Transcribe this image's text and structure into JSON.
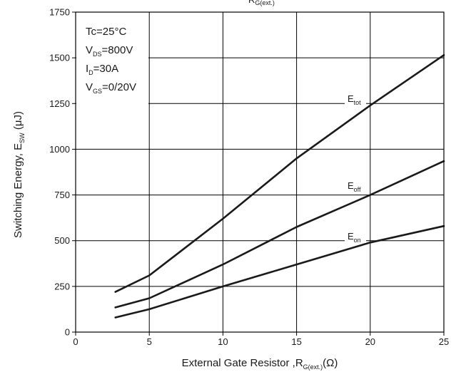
{
  "chart_data": {
    "type": "line",
    "x_axis": {
      "label_main": "External Gate Resistor ,R",
      "label_sub": "G(ext.)",
      "label_unit": "(Ω)",
      "ticks": [
        "0",
        "5",
        "10",
        "15",
        "20",
        "25"
      ],
      "lim": [
        0,
        25
      ]
    },
    "y_axis": {
      "label_main": "Switching Energy, E",
      "label_sub": "SW",
      "label_unit": " (μJ)",
      "ticks": [
        "0",
        "250",
        "500",
        "750",
        "1000",
        "1250",
        "1500",
        "1750"
      ],
      "lim": [
        0,
        1750
      ]
    },
    "top_label": {
      "main": "R",
      "sub": "G(ext.)"
    },
    "conditions": [
      {
        "main": "Tc=25°C",
        "sub": "",
        "tail": ""
      },
      {
        "main": "V",
        "sub": "DS",
        "tail": "=800V"
      },
      {
        "main": "I",
        "sub": "D",
        "tail": "=30A"
      },
      {
        "main": "V",
        "sub": "GS",
        "tail": "=0/20V"
      }
    ],
    "grid": true,
    "series": [
      {
        "name_main": "E",
        "name_sub": "tot",
        "x": [
          2.7,
          5,
          10,
          15,
          20,
          25
        ],
        "y": [
          220,
          310,
          620,
          950,
          1240,
          1515
        ]
      },
      {
        "name_main": "E",
        "name_sub": "off",
        "x": [
          2.7,
          5,
          10,
          15,
          20,
          25
        ],
        "y": [
          135,
          185,
          370,
          575,
          750,
          935
        ]
      },
      {
        "name_main": "E",
        "name_sub": "on",
        "x": [
          2.7,
          5,
          10,
          15,
          20,
          25
        ],
        "y": [
          80,
          125,
          250,
          370,
          490,
          580
        ]
      }
    ]
  }
}
